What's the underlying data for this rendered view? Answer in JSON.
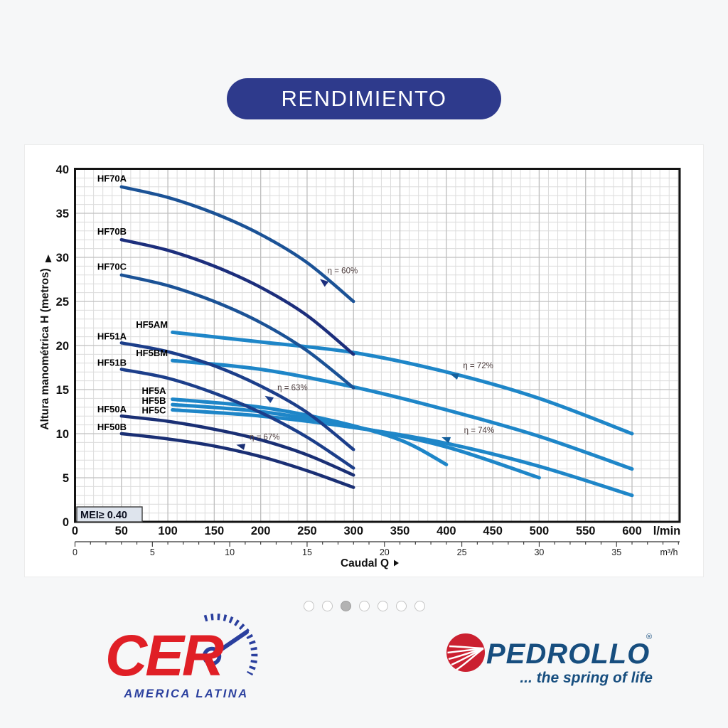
{
  "title_banner": {
    "label": "RENDIMIENTO",
    "bg_color": "#2e3a8c",
    "text_color": "#ffffff"
  },
  "chart_data": {
    "type": "line",
    "title": "",
    "xlabel": "Caudal Q",
    "ylabel": "Altura manométrica H (metros)",
    "x_unit_primary": "l/min",
    "x_unit_secondary": "m³/h",
    "xlim_lmin": [
      0,
      650
    ],
    "ylim": [
      0,
      40
    ],
    "xticks_lmin": [
      0,
      50,
      100,
      150,
      200,
      250,
      300,
      350,
      400,
      450,
      500,
      550,
      600
    ],
    "xticks_m3h": [
      0,
      5,
      10,
      15,
      20,
      25,
      30,
      35
    ],
    "yticks": [
      0,
      5,
      10,
      15,
      20,
      25,
      30,
      35,
      40
    ],
    "grid": {
      "on": true,
      "minor_step_x_lmin": 10,
      "minor_step_y_m": 1,
      "major_step_x_lmin": 50,
      "major_step_y_m": 5,
      "minor_color": "#dcdcdc",
      "major_color": "#bfbfbf"
    },
    "mei_label": "MEI≥ 0.40",
    "colors": {
      "dark_navy": "#1c2e7c",
      "navy": "#1c3e8a",
      "deep_navy": "#1a2f74",
      "steel_blue": "#1b5296",
      "light_blue": "#1e86c8"
    },
    "series": [
      {
        "name": "HF5AM",
        "color": "#1e86c8",
        "width": 5,
        "label_anchor": "end",
        "label_pos": [
          100,
          22.0
        ],
        "points": [
          [
            105,
            21.5
          ],
          [
            200,
            20.4
          ],
          [
            300,
            19.2
          ],
          [
            400,
            17.0
          ],
          [
            500,
            14.0
          ],
          [
            600,
            10.0
          ]
        ]
      },
      {
        "name": "HF5BM",
        "color": "#1e86c8",
        "width": 5,
        "label_anchor": "end",
        "label_pos": [
          100,
          18.8
        ],
        "points": [
          [
            105,
            18.3
          ],
          [
            200,
            17.3
          ],
          [
            300,
            15.3
          ],
          [
            400,
            12.7
          ],
          [
            500,
            9.7
          ],
          [
            600,
            6.0
          ]
        ]
      },
      {
        "name": "HF5A",
        "color": "#1e86c8",
        "width": 5,
        "label_anchor": "end",
        "label_pos": [
          98,
          14.5
        ],
        "points": [
          [
            105,
            13.9
          ],
          [
            200,
            13.0
          ],
          [
            280,
            11.4
          ],
          [
            350,
            9.3
          ],
          [
            400,
            6.5
          ]
        ]
      },
      {
        "name": "HF5B",
        "color": "#1e86c8",
        "width": 5,
        "label_anchor": "end",
        "label_pos": [
          98,
          13.4
        ],
        "points": [
          [
            105,
            13.3
          ],
          [
            200,
            12.5
          ],
          [
            300,
            10.8
          ],
          [
            400,
            8.5
          ],
          [
            500,
            5.0
          ]
        ]
      },
      {
        "name": "HF5C",
        "color": "#1e86c8",
        "width": 5,
        "label_anchor": "end",
        "label_pos": [
          98,
          12.3
        ],
        "points": [
          [
            105,
            12.7
          ],
          [
            200,
            12.0
          ],
          [
            300,
            10.7
          ],
          [
            400,
            8.9
          ],
          [
            500,
            6.3
          ],
          [
            600,
            3.0
          ]
        ]
      },
      {
        "name": "HF70A",
        "color": "#1b5296",
        "width": 4.5,
        "label_anchor": "start",
        "label_pos": [
          24,
          38.6
        ],
        "points": [
          [
            50,
            38.0
          ],
          [
            100,
            36.8
          ],
          [
            150,
            35.0
          ],
          [
            200,
            32.6
          ],
          [
            250,
            29.4
          ],
          [
            300,
            25.0
          ]
        ]
      },
      {
        "name": "HF70B",
        "color": "#1c2e7c",
        "width": 4.5,
        "label_anchor": "start",
        "label_pos": [
          24,
          32.6
        ],
        "points": [
          [
            50,
            32.0
          ],
          [
            100,
            30.8
          ],
          [
            150,
            29.0
          ],
          [
            200,
            26.6
          ],
          [
            250,
            23.4
          ],
          [
            300,
            19.0
          ]
        ]
      },
      {
        "name": "HF70C",
        "color": "#1b5296",
        "width": 4.5,
        "label_anchor": "start",
        "label_pos": [
          24,
          28.6
        ],
        "points": [
          [
            50,
            28.0
          ],
          [
            100,
            26.8
          ],
          [
            150,
            25.0
          ],
          [
            200,
            22.6
          ],
          [
            250,
            19.4
          ],
          [
            300,
            15.2
          ]
        ]
      },
      {
        "name": "HF51A",
        "color": "#1c3e8a",
        "width": 4.5,
        "label_anchor": "start",
        "label_pos": [
          24,
          20.7
        ],
        "points": [
          [
            50,
            20.3
          ],
          [
            100,
            19.3
          ],
          [
            150,
            17.7
          ],
          [
            200,
            15.4
          ],
          [
            250,
            12.4
          ],
          [
            300,
            8.2
          ]
        ]
      },
      {
        "name": "HF51B",
        "color": "#1c3e8a",
        "width": 4.5,
        "label_anchor": "start",
        "label_pos": [
          24,
          17.7
        ],
        "points": [
          [
            50,
            17.3
          ],
          [
            100,
            16.3
          ],
          [
            150,
            14.6
          ],
          [
            200,
            12.4
          ],
          [
            250,
            9.6
          ],
          [
            300,
            6.1
          ]
        ]
      },
      {
        "name": "HF50A",
        "color": "#1a2f74",
        "width": 4.5,
        "label_anchor": "start",
        "label_pos": [
          24,
          12.4
        ],
        "points": [
          [
            50,
            12.0
          ],
          [
            100,
            11.4
          ],
          [
            150,
            10.5
          ],
          [
            200,
            9.3
          ],
          [
            250,
            7.6
          ],
          [
            300,
            5.3
          ]
        ]
      },
      {
        "name": "HF50B",
        "color": "#1a2f74",
        "width": 4.5,
        "label_anchor": "start",
        "label_pos": [
          24,
          10.4
        ],
        "points": [
          [
            50,
            10.0
          ],
          [
            100,
            9.4
          ],
          [
            150,
            8.6
          ],
          [
            200,
            7.4
          ],
          [
            250,
            5.8
          ],
          [
            300,
            3.9
          ]
        ]
      }
    ],
    "efficiency_annotations": [
      {
        "text": "η = 60%",
        "text_pos": [
          272,
          28.2
        ],
        "marker": [
          268,
          27.2
        ],
        "rot": 38,
        "marker_color": "#1c2e7c"
      },
      {
        "text": "η = 72%",
        "text_pos": [
          418,
          17.4
        ],
        "marker": [
          409,
          16.6
        ],
        "rot": 18,
        "marker_color": "#15609c"
      },
      {
        "text": "η = 63%",
        "text_pos": [
          218,
          14.9
        ],
        "marker": [
          209,
          14.0
        ],
        "rot": 32,
        "marker_color": "#1c3e8a"
      },
      {
        "text": "η = 74%",
        "text_pos": [
          419,
          10.1
        ],
        "marker": [
          400,
          9.4
        ],
        "rot": 20,
        "marker_color": "#15609c"
      },
      {
        "text": "η = 67%",
        "text_pos": [
          188,
          9.3
        ],
        "marker": [
          179,
          8.6
        ],
        "rot": 14,
        "marker_color": "#1a2f74"
      }
    ],
    "annotation_text_color": "#4b3b3b",
    "axis_text_color": "#111111",
    "legend_position": "on-curve-labels"
  },
  "carousel": {
    "count": 7,
    "active_index": 2
  },
  "logos": {
    "cer": {
      "name": "CER",
      "subtitle": "AMERICA LATINA",
      "red": "#e01f26",
      "blue": "#2a3f9e"
    },
    "pedrollo": {
      "name": "PEDROLLO",
      "reg_mark": "®",
      "tagline": "... the spring of life",
      "blue": "#174e7f",
      "red": "#cb2030"
    }
  }
}
